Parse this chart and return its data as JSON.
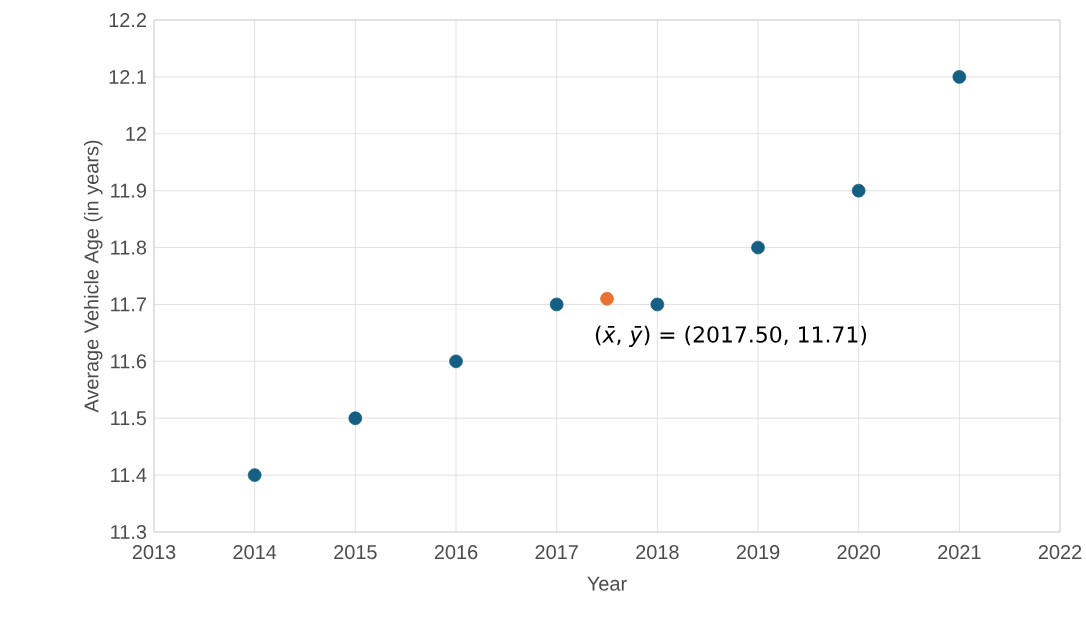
{
  "chart_data": {
    "type": "scatter",
    "xlabel": "Year",
    "ylabel": "Average Vehicle Age (in years)",
    "x": [
      2014,
      2015,
      2016,
      2017,
      2018,
      2019,
      2020,
      2021
    ],
    "series": [
      {
        "color": "#156082",
        "values": [
          11.4,
          11.5,
          11.6,
          11.7,
          11.7,
          11.8,
          11.9,
          12.1
        ]
      },
      {
        "color": "#e97132",
        "x": [
          2017.5
        ],
        "values": [
          11.71
        ]
      }
    ],
    "annotations": [
      {
        "text": "(*x̄*, *ȳ*) = (2017.50, 11.71)",
        "x": 2017.5,
        "y": 11.71
      }
    ],
    "xlim": [
      2013,
      2022
    ],
    "xticks": [
      2013,
      2014,
      2015,
      2016,
      2017,
      2018,
      2019,
      2020,
      2021,
      2022
    ],
    "ylim": [
      11.3,
      12.2
    ],
    "yticks": [
      11.3,
      11.4,
      11.5,
      11.6,
      11.7,
      11.8,
      11.9,
      12,
      12.1,
      12.2
    ],
    "grid": true
  }
}
